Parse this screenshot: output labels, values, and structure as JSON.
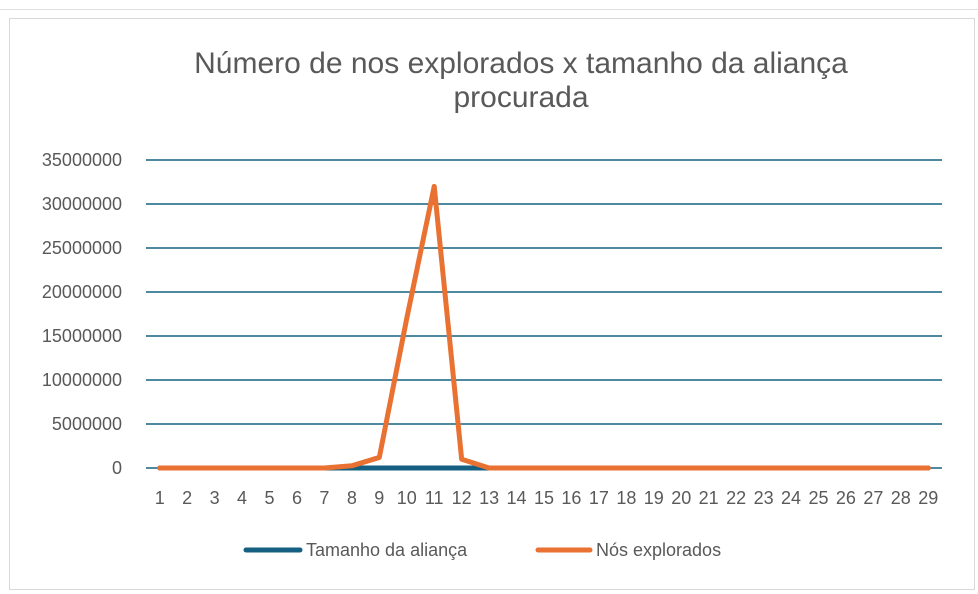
{
  "chart_data": {
    "type": "line",
    "title": "Número de nos explorados x tamanho da aliança procurada",
    "title_lines": [
      "Número de nos explorados x tamanho da aliança",
      "procurada"
    ],
    "categories": [
      "1",
      "2",
      "3",
      "4",
      "5",
      "6",
      "7",
      "8",
      "9",
      "10",
      "11",
      "12",
      "13",
      "14",
      "15",
      "16",
      "17",
      "18",
      "19",
      "20",
      "21",
      "22",
      "23",
      "24",
      "25",
      "26",
      "27",
      "28",
      "29"
    ],
    "yticks": [
      "0",
      "5000000",
      "10000000",
      "15000000",
      "20000000",
      "25000000",
      "30000000",
      "35000000"
    ],
    "ylim": [
      0,
      35000000
    ],
    "grid": true,
    "legend_position": "bottom",
    "series": [
      {
        "name": "Tamanho da aliança",
        "color": "#156082",
        "values": [
          1,
          2,
          3,
          4,
          5,
          6,
          7,
          8,
          9,
          10,
          11,
          12,
          13,
          14,
          15,
          16,
          17,
          18,
          19,
          20,
          21,
          22,
          23,
          24,
          25,
          26,
          27,
          28,
          29
        ]
      },
      {
        "name": "Nós explorados",
        "color": "#e97132",
        "values": [
          1,
          3,
          10,
          40,
          150,
          600,
          3000,
          250000,
          1200000,
          17000000,
          32000000,
          1000000,
          0,
          0,
          0,
          0,
          0,
          0,
          0,
          0,
          0,
          0,
          0,
          0,
          0,
          0,
          0,
          0,
          0
        ]
      }
    ],
    "colors": {
      "gridline": "#156082",
      "text": "#595959"
    }
  }
}
